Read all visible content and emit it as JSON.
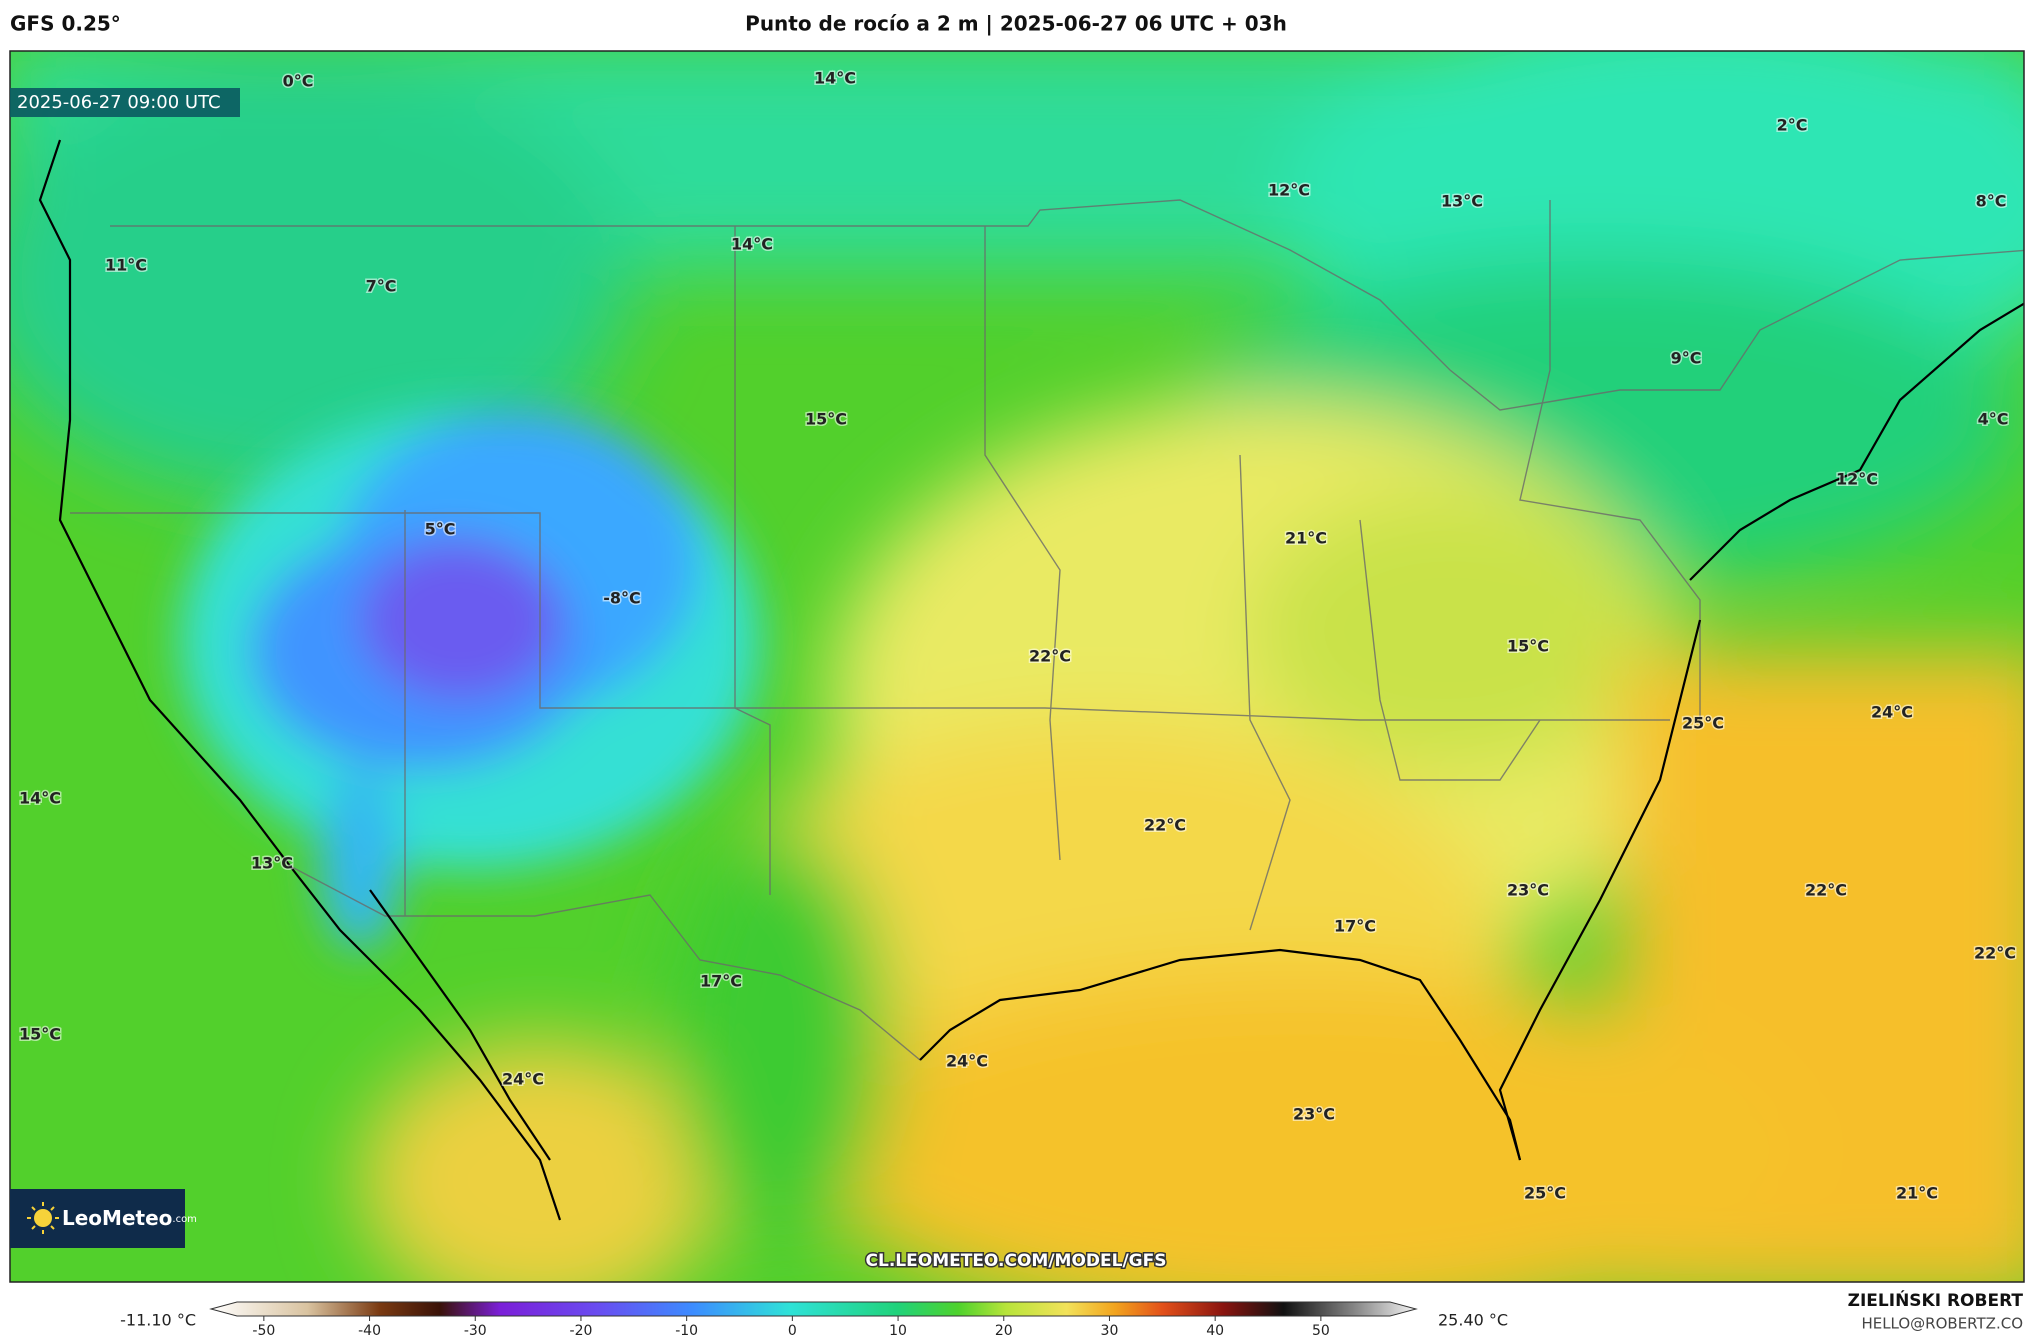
{
  "header": {
    "model": "GFS 0.25°",
    "title": "Punto de rocío a 2 m | 2025-06-27 06 UTC + 03h"
  },
  "map": {
    "timestamp": "2025-06-27 09:00 UTC",
    "labels": [
      "0°C",
      "14°C",
      "2°C",
      "12°C",
      "13°C",
      "8°C",
      "14°C",
      "11°C",
      "7°C",
      "9°C",
      "15°C",
      "4°C",
      "12°C",
      "5°C",
      "21°C",
      "-8°C",
      "22°C",
      "15°C",
      "25°C",
      "24°C",
      "14°C",
      "22°C",
      "13°C",
      "23°C",
      "22°C",
      "17°C",
      "22°C",
      "17°C",
      "15°C",
      "24°C",
      "24°C",
      "23°C",
      "25°C",
      "21°C"
    ],
    "watermark": "CL.LEOMETEO.COM/MODEL/GFS",
    "logo_name": "LeoMeteo",
    "logo_suffix": ".com"
  },
  "colorbar": {
    "min_label": "-11.10 °C",
    "max_label": "25.40 °C",
    "lim": [
      -55,
      59
    ],
    "ticks": [
      -50,
      -40,
      -30,
      -20,
      -10,
      0,
      10,
      20,
      30,
      40,
      50
    ]
  },
  "credits": {
    "author": "ZIELIŃSKI ROBERT",
    "email": "HELLO@ROBERTZ.CO"
  }
}
